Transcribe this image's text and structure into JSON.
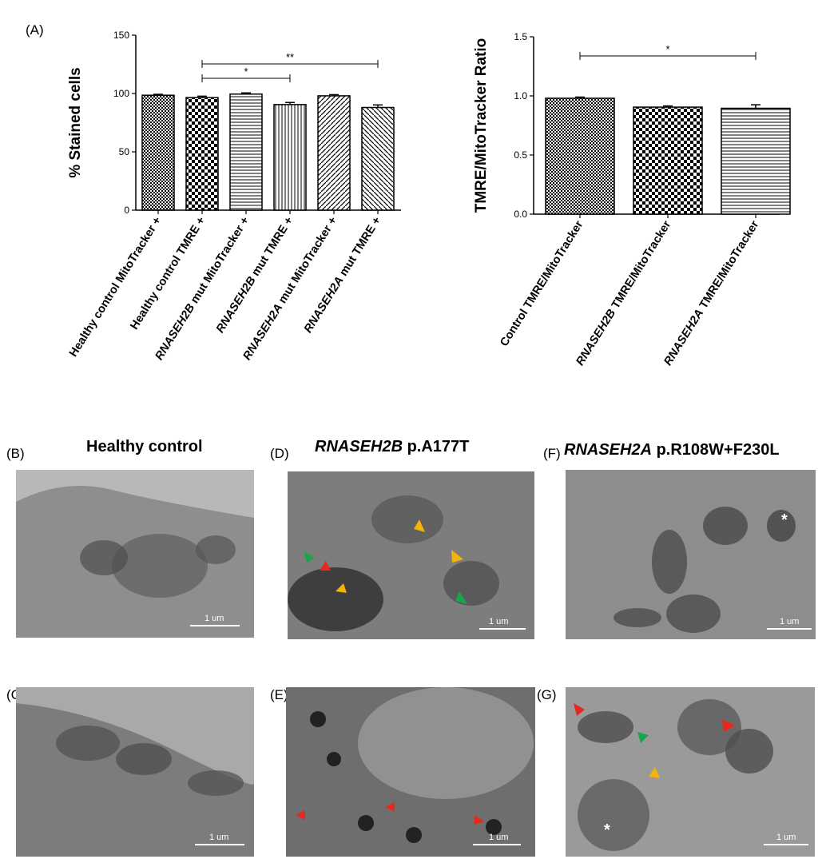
{
  "figure": {
    "panel_labels": {
      "A": "(A)",
      "B": "(B)",
      "C": "(C)",
      "D": "(D)",
      "E": "(E)",
      "F": "(F)",
      "G": "(G)"
    },
    "em_titles": {
      "healthy": {
        "text": "Healthy control"
      },
      "rnaseh2b": {
        "gene": "RNASEH2B",
        "variant": " p.A177T"
      },
      "rnaseh2a": {
        "gene": "RNASEH2A",
        "variant": " p.R108W+F230L"
      }
    },
    "scale_label": "1 um",
    "asterisk": "*"
  },
  "chart_data": [
    {
      "type": "bar",
      "ylabel": "% Stained cells",
      "ylim": [
        0,
        150
      ],
      "yticks": [
        "0",
        "50",
        "100",
        "150"
      ],
      "categories": [
        {
          "pre": "Healthy control MitoTracker +",
          "gene": "",
          "post": ""
        },
        {
          "pre": "Healthy control TMRE +",
          "gene": "",
          "post": ""
        },
        {
          "pre": "",
          "gene": "RNASEH2B",
          "post": " mut  MitoTracker +"
        },
        {
          "pre": "",
          "gene": "RNASEH2B",
          "post": " mut  TMRE +"
        },
        {
          "pre": "",
          "gene": "RNASEH2A",
          "post": " mut  MitoTracker +"
        },
        {
          "pre": "",
          "gene": "RNASEH2A",
          "post": " mut  TMRE +"
        }
      ],
      "values": [
        98.5,
        96.5,
        99.5,
        90.5,
        98,
        88
      ],
      "errors": [
        0.8,
        1.2,
        1,
        1.8,
        1,
        2.2
      ],
      "significance": [
        {
          "from": 1,
          "to": 3,
          "label": "*"
        },
        {
          "from": 1,
          "to": 5,
          "label": "**"
        }
      ]
    },
    {
      "type": "bar",
      "ylabel": "TMRE/MitoTracker Ratio",
      "ylim": [
        0,
        1.5
      ],
      "yticks": [
        "0.0",
        "0.5",
        "1.0",
        "1.5"
      ],
      "categories": [
        {
          "pre": "Control TMRE/MitoTracker",
          "gene": "",
          "post": ""
        },
        {
          "pre": "",
          "gene": "RNASEH2B",
          "post": " TMRE/MitoTracker"
        },
        {
          "pre": "",
          "gene": "RNASEH2A",
          "post": " TMRE/MitoTracker"
        }
      ],
      "values": [
        0.98,
        0.905,
        0.895
      ],
      "errors": [
        0.01,
        0.01,
        0.03
      ],
      "significance": [
        {
          "from": 0,
          "to": 2,
          "label": "*"
        }
      ]
    }
  ]
}
